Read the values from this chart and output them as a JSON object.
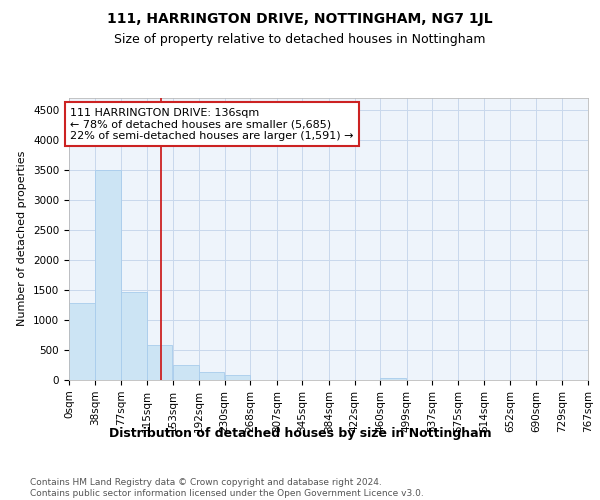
{
  "title": "111, HARRINGTON DRIVE, NOTTINGHAM, NG7 1JL",
  "subtitle": "Size of property relative to detached houses in Nottingham",
  "xlabel": "Distribution of detached houses by size in Nottingham",
  "ylabel": "Number of detached properties",
  "bar_color": "#cce4f4",
  "bar_edge_color": "#a8ccec",
  "grid_color": "#c8d8ec",
  "background_color": "#eef4fb",
  "vline_x": 136,
  "vline_color": "#cc2222",
  "annotation_text": "111 HARRINGTON DRIVE: 136sqm\n← 78% of detached houses are smaller (5,685)\n22% of semi-detached houses are larger (1,591) →",
  "annotation_box_color": "#ffffff",
  "annotation_box_edge": "#cc2222",
  "bins": [
    0,
    38,
    77,
    115,
    153,
    192,
    230,
    268,
    307,
    345,
    384,
    422,
    460,
    499,
    537,
    575,
    614,
    652,
    690,
    729,
    767
  ],
  "bin_labels": [
    "0sqm",
    "38sqm",
    "77sqm",
    "115sqm",
    "153sqm",
    "192sqm",
    "230sqm",
    "268sqm",
    "307sqm",
    "345sqm",
    "384sqm",
    "422sqm",
    "460sqm",
    "499sqm",
    "537sqm",
    "575sqm",
    "614sqm",
    "652sqm",
    "690sqm",
    "729sqm",
    "767sqm"
  ],
  "bar_values": [
    1280,
    3500,
    1470,
    580,
    250,
    140,
    80,
    0,
    0,
    0,
    0,
    0,
    35,
    0,
    0,
    0,
    0,
    0,
    0,
    0
  ],
  "ylim": [
    0,
    4700
  ],
  "yticks": [
    0,
    500,
    1000,
    1500,
    2000,
    2500,
    3000,
    3500,
    4000,
    4500
  ],
  "footer_text": "Contains HM Land Registry data © Crown copyright and database right 2024.\nContains public sector information licensed under the Open Government Licence v3.0.",
  "title_fontsize": 10,
  "subtitle_fontsize": 9,
  "xlabel_fontsize": 9,
  "ylabel_fontsize": 8,
  "tick_fontsize": 7.5,
  "footer_fontsize": 6.5,
  "annotation_fontsize": 8
}
